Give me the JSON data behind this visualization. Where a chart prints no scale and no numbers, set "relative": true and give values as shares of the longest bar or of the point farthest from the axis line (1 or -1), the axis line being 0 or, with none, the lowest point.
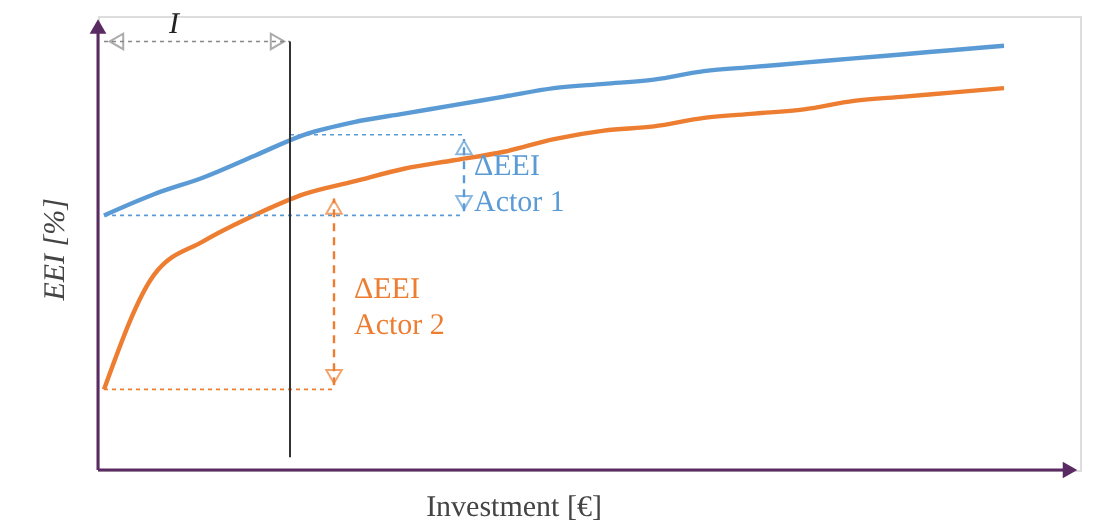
{
  "chart_data": {
    "type": "line",
    "relative": true,
    "xlabel": "Investment [€]",
    "ylabel": "EEI [%]",
    "categories": [
      null,
      null,
      null,
      null,
      null,
      null,
      null,
      null,
      null,
      null,
      null,
      null,
      null,
      null,
      null,
      null,
      null,
      null,
      null
    ],
    "series": [
      {
        "color": "#5b9bd5",
        "values": [
          0.6,
          0.65,
          0.69,
          0.74,
          0.79,
          0.82,
          0.84,
          0.86,
          0.88,
          0.9,
          0.91,
          0.92,
          0.94,
          0.95,
          0.96,
          0.97,
          0.98,
          0.99,
          1.0
        ]
      },
      {
        "color": "#ed7d31",
        "values": [
          0.19,
          0.46,
          0.54,
          0.6,
          0.65,
          0.68,
          0.71,
          0.73,
          0.75,
          0.78,
          0.8,
          0.81,
          0.83,
          0.84,
          0.85,
          0.87,
          0.88,
          0.89,
          0.9
        ]
      }
    ],
    "annotations": [
      "I",
      "ΔEEI\nActor 1",
      "ΔEEI\nActor 2"
    ]
  }
}
